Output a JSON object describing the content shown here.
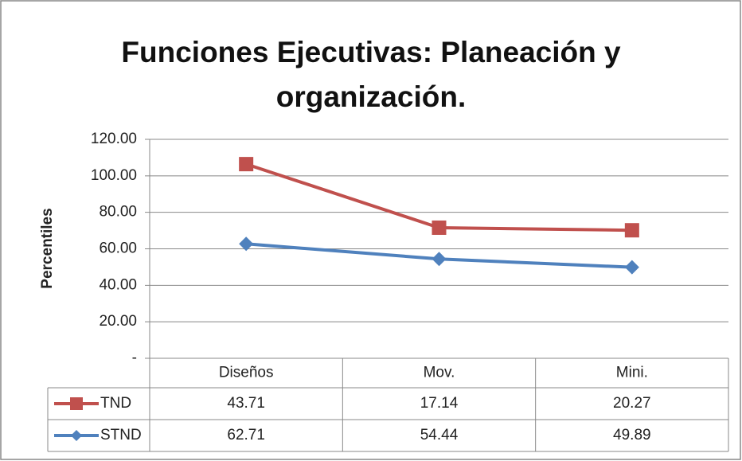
{
  "chart_data": {
    "type": "line",
    "stacked": true,
    "title": "Funciones Ejecutivas: Planeación y organización.",
    "ylabel": "Percentiles",
    "categories": [
      "Diseños",
      "Mov.",
      "Mini."
    ],
    "series": [
      {
        "name": "STND",
        "color": "#4f81bd",
        "marker": "diamond",
        "values": [
          62.71,
          54.44,
          49.89
        ]
      },
      {
        "name": "TND",
        "color": "#c0504d",
        "marker": "square",
        "values": [
          43.71,
          17.14,
          20.27
        ]
      }
    ],
    "table_order": [
      1,
      0
    ],
    "ylim": [
      0,
      120
    ],
    "yticks": [
      {
        "value": 0,
        "label": "-"
      },
      {
        "value": 20,
        "label": "20.00"
      },
      {
        "value": 40,
        "label": "40.00"
      },
      {
        "value": 60,
        "label": "60.00"
      },
      {
        "value": 80,
        "label": "80.00"
      },
      {
        "value": 100,
        "label": "100.00"
      },
      {
        "value": 120,
        "label": "120.00"
      }
    ],
    "grid": true,
    "data_table": true
  }
}
